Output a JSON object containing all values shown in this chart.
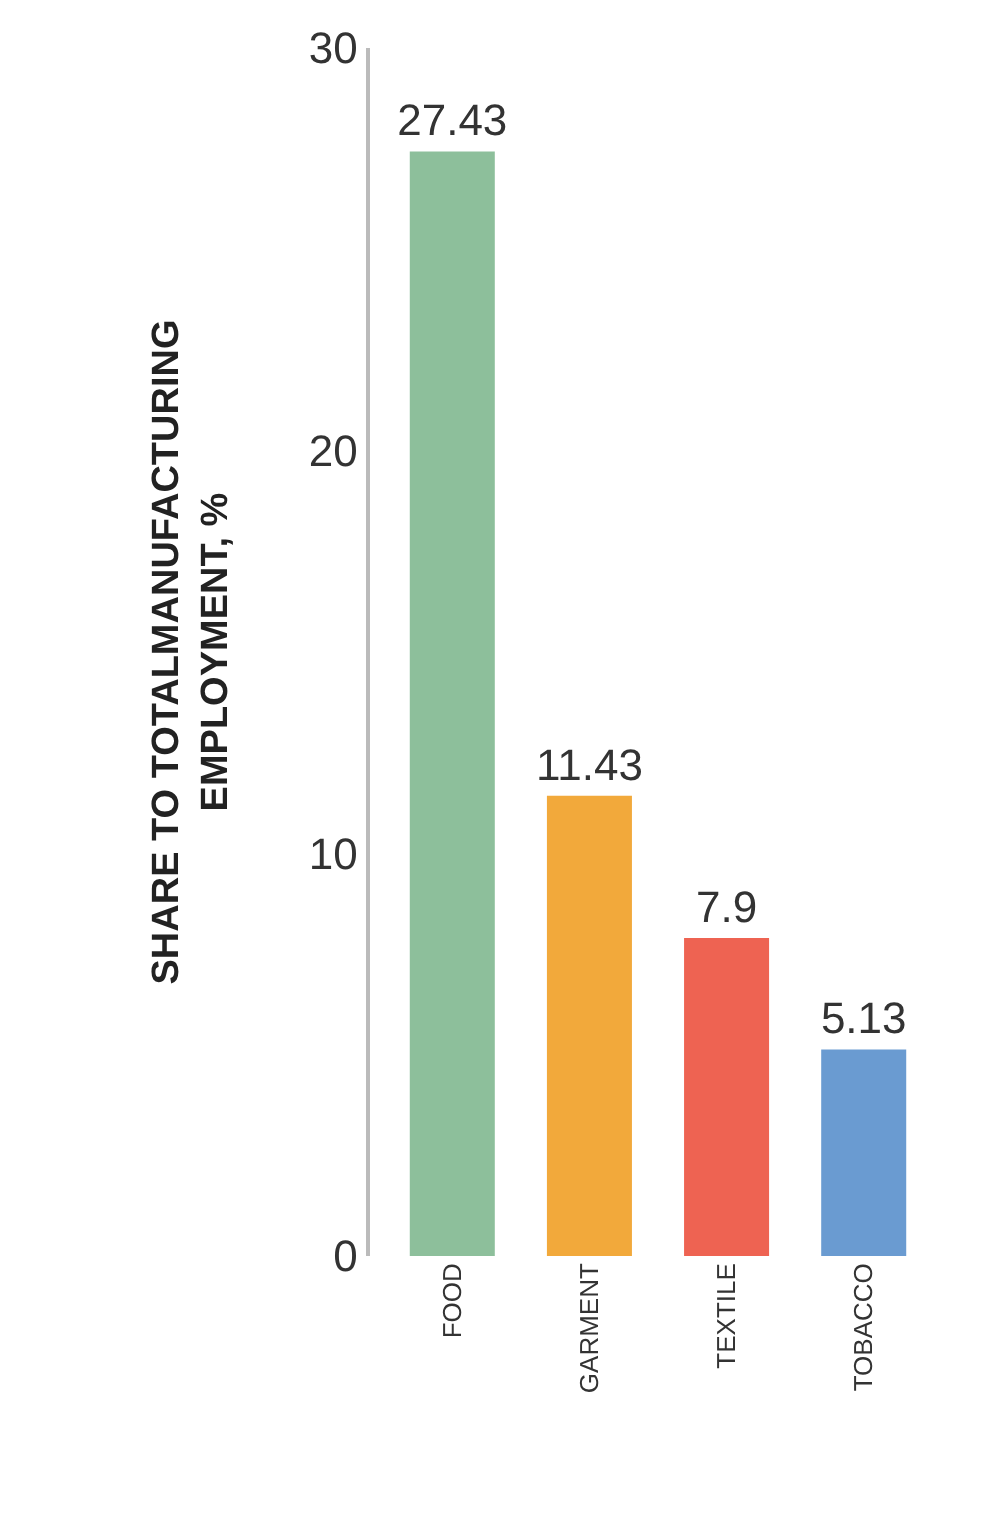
{
  "chart_data": {
    "type": "bar",
    "ylabel": "SHARE TO TOTALMANUFACTURING\nEMPLOYMENT, %",
    "categories": [
      "FOOD",
      "GARMENT",
      "TEXTILE",
      "TOBACCO"
    ],
    "values": [
      27.43,
      11.43,
      7.9,
      5.13
    ],
    "colors": [
      "#8dbf9b",
      "#f2a93b",
      "#ee6352",
      "#6a9bd1"
    ],
    "ylim": [
      0,
      30
    ],
    "yticks": [
      0,
      10,
      20,
      30
    ],
    "data_labels": true
  }
}
